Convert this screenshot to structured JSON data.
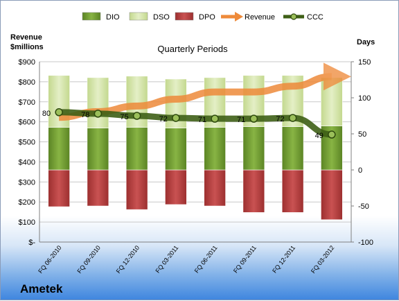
{
  "chart_data": {
    "type": "bar",
    "title": "Quarterly Periods",
    "categories": [
      "FQ 06-2010",
      "FQ 09-2010",
      "FQ 12-2010",
      "FQ 03-2011",
      "FQ 06-2011",
      "FQ 09-2011",
      "FQ 12-2011",
      "FQ 03-2012"
    ],
    "y_left": {
      "label_line1": "Revenue",
      "label_line2": "$millions",
      "ylim": [
        0,
        900
      ],
      "ticks": [
        "$-",
        "$100",
        "$200",
        "$300",
        "$400",
        "$500",
        "$600",
        "$700",
        "$800",
        "$900"
      ]
    },
    "y_right": {
      "label": "Days",
      "ylim": [
        -100,
        150
      ],
      "ticks": [
        "-100",
        "-50",
        "0",
        "50",
        "100",
        "150"
      ]
    },
    "series": [
      {
        "name": "DIO",
        "values": [
          59,
          58,
          59,
          58,
          59,
          60,
          60,
          61
        ],
        "color": "#6e9a2e"
      },
      {
        "name": "DSO",
        "values": [
          72,
          70,
          71,
          68,
          69,
          71,
          71,
          67
        ],
        "color": "#d2e3a6"
      },
      {
        "name": "DPO",
        "values": [
          -51,
          -50,
          -55,
          -48,
          -50,
          -59,
          -59,
          -69
        ],
        "color": "#b23a3a"
      },
      {
        "name": "Revenue",
        "values": [
          622,
          651,
          679,
          713,
          749,
          749,
          778,
          826
        ],
        "color": "#ee8a3a"
      },
      {
        "name": "CCC",
        "values": [
          80,
          78,
          75,
          72,
          71,
          71,
          72,
          49
        ],
        "color": "#4a6e1e"
      }
    ],
    "ccc_labels": [
      "80",
      "78",
      "75",
      "72",
      "71",
      "71",
      "72",
      "49"
    ],
    "legend_position": "top",
    "grid": true
  },
  "brand": "Ametek"
}
